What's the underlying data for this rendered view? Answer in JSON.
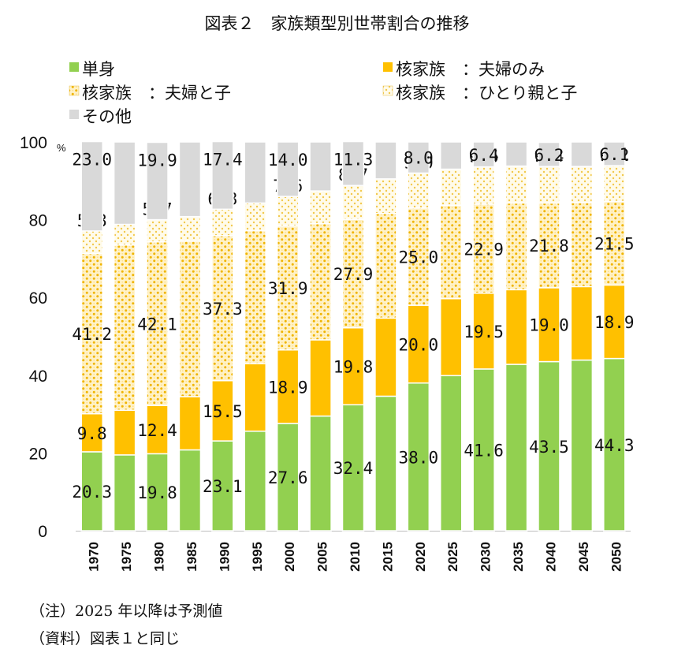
{
  "title": "図表２　家族類型別世帯割合の推移",
  "note": "（注）2025 年以降は予測値",
  "source": "（資料）図表１と同じ",
  "colors": {
    "single": "#92D050",
    "couple_only": "#FFC000",
    "couple_children": "#FFD966",
    "single_parent": "#FFE699",
    "other": "#D9D9D9"
  },
  "chart_data": {
    "type": "bar",
    "stacked": true,
    "categories": [
      "1970",
      "1975",
      "1980",
      "1985",
      "1990",
      "1995",
      "2000",
      "2005",
      "2010",
      "2015",
      "2020",
      "2025",
      "2030",
      "2035",
      "2040",
      "2045",
      "2050"
    ],
    "ylim": [
      0,
      100
    ],
    "yticks": [
      "0",
      "20",
      "40",
      "60",
      "80",
      "100"
    ],
    "yunit": "%",
    "grid": false,
    "legend_position": "top",
    "series": [
      {
        "name": "単身",
        "key": "single",
        "values": [
          20.3,
          19.5,
          19.8,
          20.8,
          23.1,
          25.6,
          27.6,
          29.5,
          32.4,
          34.6,
          38.0,
          39.9,
          41.6,
          42.8,
          43.5,
          43.9,
          44.3
        ],
        "labels": [
          "20.3",
          null,
          "19.8",
          null,
          "23.1",
          null,
          "27.6",
          null,
          "32.4",
          null,
          "38.0",
          null,
          "41.6",
          null,
          "43.5",
          null,
          "44.3"
        ]
      },
      {
        "name": "核家族　：夫婦のみ",
        "key": "couple_only",
        "values": [
          9.8,
          11.5,
          12.4,
          13.7,
          15.5,
          17.4,
          18.9,
          19.6,
          19.8,
          20.1,
          20.0,
          19.8,
          19.5,
          19.2,
          19.0,
          18.9,
          18.9
        ],
        "labels": [
          "9.8",
          null,
          "12.4",
          null,
          "15.5",
          null,
          "18.9",
          null,
          "19.8",
          null,
          "20.0",
          null,
          "19.5",
          null,
          "19.0",
          null,
          "18.9"
        ]
      },
      {
        "name": "核家族　：夫婦と子",
        "key": "couple_children",
        "values": [
          41.2,
          42.5,
          42.1,
          40.0,
          37.3,
          34.2,
          31.9,
          29.9,
          27.9,
          26.9,
          25.0,
          24.0,
          22.9,
          22.3,
          21.8,
          21.6,
          21.5
        ],
        "labels": [
          "41.2",
          null,
          "42.1",
          null,
          "37.3",
          null,
          "31.9",
          null,
          "27.9",
          null,
          "25.0",
          null,
          "22.9",
          null,
          "21.8",
          null,
          "21.5"
        ]
      },
      {
        "name": "核家族　：ひとり親と子",
        "key": "single_parent",
        "values": [
          5.8,
          5.3,
          5.7,
          6.3,
          6.8,
          7.1,
          7.6,
          8.4,
          8.7,
          8.9,
          9.0,
          9.3,
          9.6,
          9.5,
          9.4,
          9.3,
          9.2
        ],
        "labels": [
          "5.8",
          null,
          "5.7",
          null,
          "6.8",
          null,
          "7.6",
          null,
          "8.7",
          null,
          "9.0",
          null,
          "9.6",
          null,
          "9.4",
          null,
          "9.2"
        ]
      },
      {
        "name": "その他",
        "key": "other",
        "values": [
          23.0,
          21.2,
          19.9,
          19.2,
          17.4,
          15.7,
          14.0,
          12.6,
          11.3,
          9.5,
          8.0,
          7.0,
          6.4,
          6.2,
          6.2,
          6.3,
          6.1
        ],
        "labels": [
          "23.0",
          null,
          "19.9",
          null,
          "17.4",
          null,
          "14.0",
          null,
          "11.3",
          null,
          "8.0",
          null,
          "6.4",
          null,
          "6.2",
          null,
          "6.1"
        ]
      }
    ]
  }
}
